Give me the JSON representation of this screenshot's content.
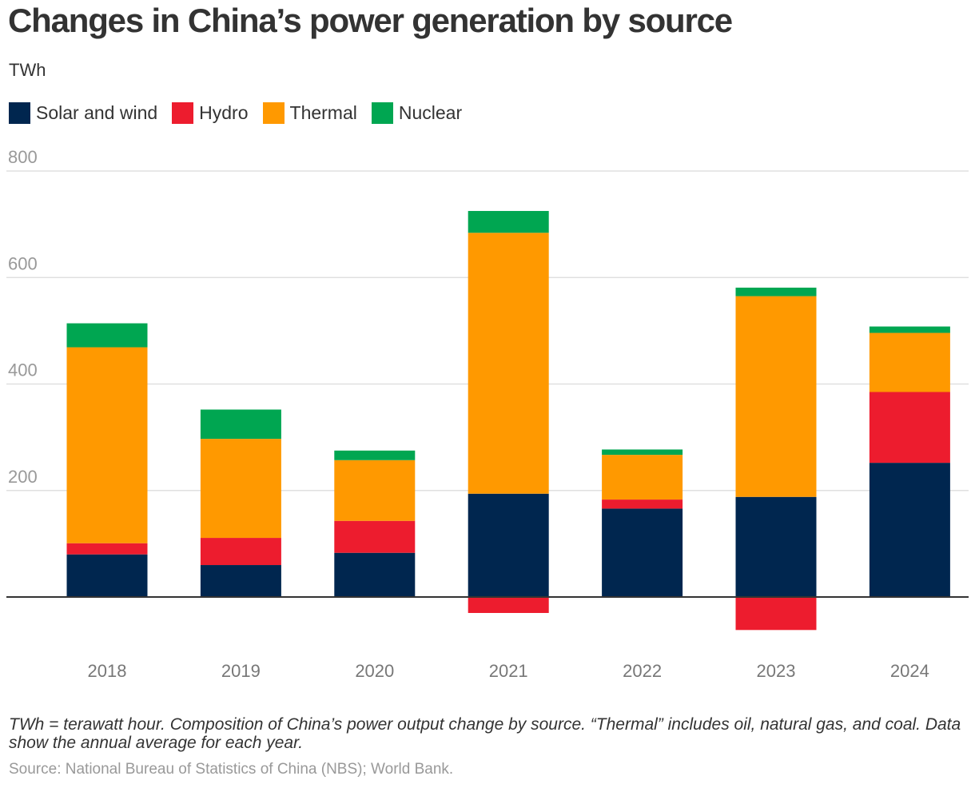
{
  "header": {
    "title": "Changes in China’s power generation by source",
    "unit": "TWh"
  },
  "colors": {
    "solar_wind": "#00264F",
    "hydro": "#ED1C2E",
    "thermal": "#FF9900",
    "nuclear": "#00A651",
    "grid": "#E0E0E0",
    "zero_line": "#333333"
  },
  "legend": [
    {
      "label": "Solar and wind",
      "color": "#00264F"
    },
    {
      "label": "Hydro",
      "color": "#ED1C2E"
    },
    {
      "label": "Thermal",
      "color": "#FF9900"
    },
    {
      "label": "Nuclear",
      "color": "#00A651"
    }
  ],
  "chart_data": {
    "type": "bar",
    "stacked": true,
    "title": "Changes in China’s power generation by source",
    "ylabel": "TWh",
    "ylim": [
      -100,
      800
    ],
    "yticks": [
      200,
      400,
      600,
      800
    ],
    "grid": true,
    "legend_position": "top-left",
    "categories": [
      "2018",
      "2019",
      "2020",
      "2021",
      "2022",
      "2023",
      "2024"
    ],
    "series": [
      {
        "name": "Solar and wind",
        "color": "#00264F",
        "values": [
          80,
          60,
          83,
          194,
          166,
          188,
          252
        ]
      },
      {
        "name": "Hydro",
        "color": "#ED1C2E",
        "values": [
          21,
          51,
          60,
          -30,
          17,
          -62,
          133
        ]
      },
      {
        "name": "Thermal",
        "color": "#FF9900",
        "values": [
          368,
          186,
          114,
          490,
          84,
          377,
          111
        ]
      },
      {
        "name": "Nuclear",
        "color": "#00A651",
        "values": [
          45,
          55,
          18,
          41,
          10,
          16,
          12
        ]
      }
    ]
  },
  "footer": {
    "note": "TWh = terawatt hour. Composition of China’s power output change by source. “Thermal” includes oil, natural gas, and coal. Data show the annual average for each year.",
    "source": "Source: National Bureau of Statistics of China (NBS); World Bank."
  }
}
